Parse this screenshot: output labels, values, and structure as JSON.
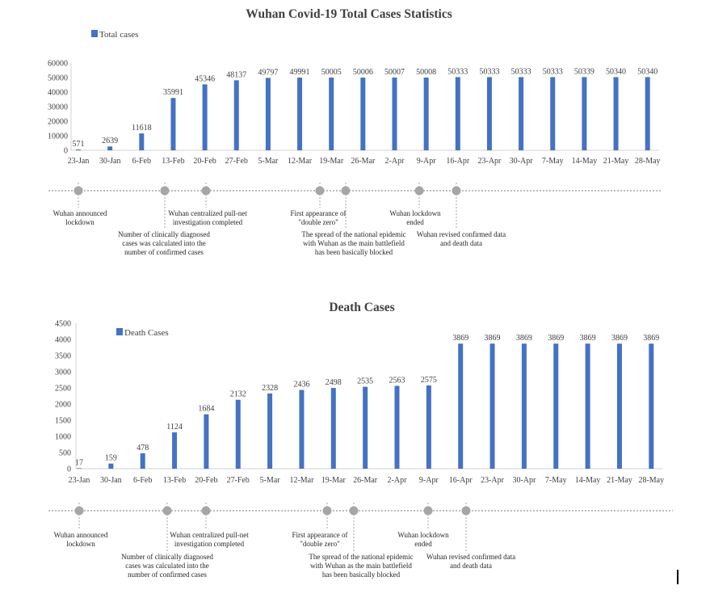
{
  "chart_data": [
    {
      "type": "bar",
      "title": "Wuhan Covid-19 Total Cases Statistics",
      "categories": [
        "23-Jan",
        "30-Jan",
        "6-Feb",
        "13-Feb",
        "20-Feb",
        "27-Feb",
        "5-Mar",
        "12-Mar",
        "19-Mar",
        "26-Mar",
        "2-Apr",
        "9-Apr",
        "16-Apr",
        "23-Apr",
        "30-Apr",
        "7-May",
        "14-May",
        "21-May",
        "28-May"
      ],
      "series": [
        {
          "name": "Total cases",
          "values": [
            571,
            2639,
            11618,
            35991,
            45346,
            48137,
            49797,
            49991,
            50005,
            50006,
            50007,
            50008,
            50333,
            50333,
            50333,
            50333,
            50339,
            50340,
            50340
          ]
        }
      ],
      "y_ticks": [
        "0",
        "10000",
        "20000",
        "30000",
        "40000",
        "50000",
        "60000"
      ],
      "ylim": [
        0,
        60000
      ],
      "legend_position": "top-left",
      "grid": false,
      "bar_color": "#4472C4",
      "events": [
        {
          "lines": [
            "Wuhan announced",
            "lockdown"
          ],
          "tier": "upper"
        },
        {
          "lines": [
            "Number of clinically diagnosed",
            "cases was calculated into the",
            "number of confirmed cases"
          ],
          "tier": "lower"
        },
        {
          "lines": [
            "Wuhan centralized pull-net",
            "investigation completed"
          ],
          "tier": "upper"
        },
        {
          "lines": [
            "First appearance of",
            "\"double zero\""
          ],
          "tier": "upper"
        },
        {
          "lines": [
            "The spread of the national epidemic",
            "with Wuhan as the main battlefield",
            "has been basically blocked"
          ],
          "tier": "lower"
        },
        {
          "lines": [
            "Wuhan lockdown",
            "ended"
          ],
          "tier": "upper"
        },
        {
          "lines": [
            "Wuhan revised confirmed data",
            "and death data"
          ],
          "tier": "lower"
        }
      ]
    },
    {
      "type": "bar",
      "title": "Death Cases",
      "categories": [
        "23-Jan",
        "30-Jan",
        "6-Feb",
        "13-Feb",
        "20-Feb",
        "27-Feb",
        "5-Mar",
        "12-Mar",
        "19-Mar",
        "26-Mar",
        "2-Apr",
        "9-Apr",
        "16-Apr",
        "23-Apr",
        "30-Apr",
        "7-May",
        "14-May",
        "21-May",
        "28-May"
      ],
      "series": [
        {
          "name": "Death Cases",
          "values": [
            17,
            159,
            478,
            1124,
            1684,
            2132,
            2328,
            2436,
            2498,
            2535,
            2563,
            2575,
            3869,
            3869,
            3869,
            3869,
            3869,
            3869,
            3869
          ]
        }
      ],
      "y_ticks": [
        "0",
        "500",
        "1000",
        "1500",
        "2000",
        "2500",
        "3000",
        "3500",
        "4000",
        "4500"
      ],
      "ylim": [
        0,
        4500
      ],
      "legend_position": "top-left",
      "grid": false,
      "bar_color": "#4472C4",
      "events": [
        {
          "lines": [
            "Wuhan announced",
            "lockdown"
          ],
          "tier": "upper"
        },
        {
          "lines": [
            "Number of clinically diagnosed",
            "cases was calculated into the",
            "number of confirmed cases"
          ],
          "tier": "lower"
        },
        {
          "lines": [
            "Wuhan centralized pull-net",
            "investigation completed"
          ],
          "tier": "upper"
        },
        {
          "lines": [
            "First appearance of",
            "\"double zero\""
          ],
          "tier": "upper"
        },
        {
          "lines": [
            "The spread of the national epidemic",
            "with Wuhan as the main battlefield",
            "has been basically blocked"
          ],
          "tier": "lower"
        },
        {
          "lines": [
            "Wuhan lockdown",
            "ended"
          ],
          "tier": "upper"
        },
        {
          "lines": [
            "Wuhan revised confirmed data",
            "and death data"
          ],
          "tier": "lower"
        }
      ]
    }
  ]
}
